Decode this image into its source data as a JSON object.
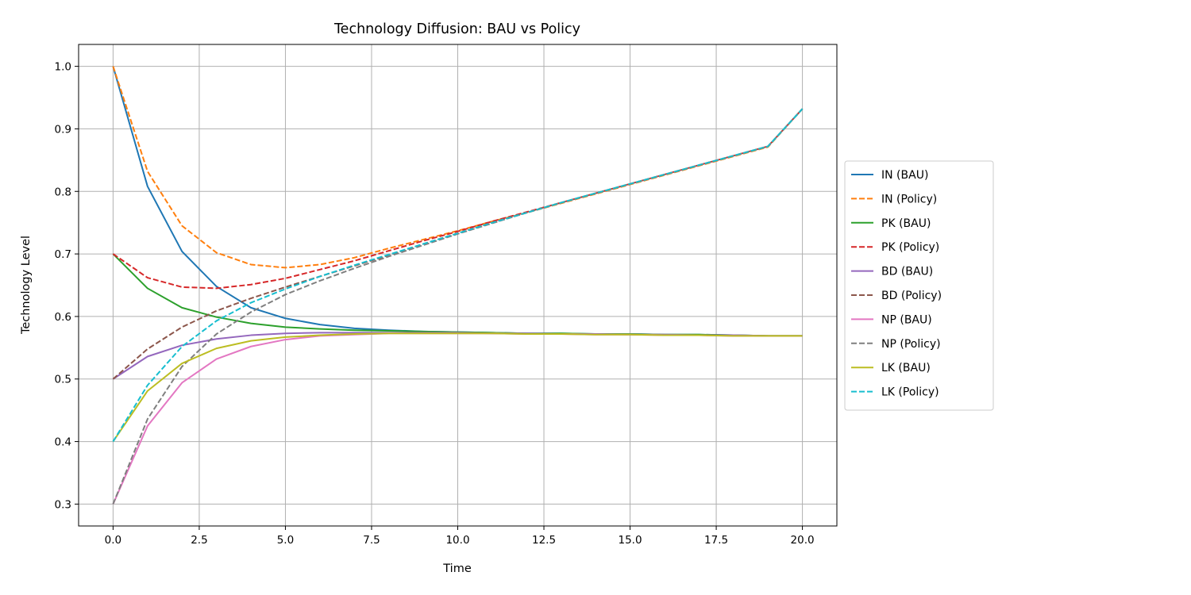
{
  "chart_data": {
    "type": "line",
    "title": "Technology Diffusion: BAU vs Policy",
    "xlabel": "Time",
    "ylabel": "Technology Level",
    "xlim": [
      -1,
      21
    ],
    "ylim": [
      0.265,
      1.035
    ],
    "xticks": [
      0.0,
      2.5,
      5.0,
      7.5,
      10.0,
      12.5,
      15.0,
      17.5,
      20.0
    ],
    "xtick_labels": [
      "0.0",
      "2.5",
      "5.0",
      "7.5",
      "10.0",
      "12.5",
      "15.0",
      "17.5",
      "20.0"
    ],
    "yticks": [
      0.3,
      0.4,
      0.5,
      0.6,
      0.7,
      0.8,
      0.9,
      1.0
    ],
    "ytick_labels": [
      "0.3",
      "0.4",
      "0.5",
      "0.6",
      "0.7",
      "0.8",
      "0.9",
      "1.0"
    ],
    "grid": true,
    "legend_position": "outside-right",
    "x": [
      0,
      1,
      2,
      3,
      4,
      5,
      6,
      7,
      8,
      9,
      10,
      11,
      12,
      13,
      14,
      15,
      16,
      17,
      18,
      19,
      20
    ],
    "series": [
      {
        "name": "IN (BAU)",
        "color": "#1f77b4",
        "dash": "solid",
        "values": [
          1.0,
          0.808,
          0.704,
          0.648,
          0.614,
          0.597,
          0.587,
          0.581,
          0.578,
          0.576,
          0.575,
          0.574,
          0.573,
          0.573,
          0.572,
          0.572,
          0.571,
          0.571,
          0.57,
          0.569,
          0.569
        ]
      },
      {
        "name": "IN (Policy)",
        "color": "#ff7f0e",
        "dash": "dashed",
        "values": [
          1.0,
          0.832,
          0.745,
          0.702,
          0.683,
          0.678,
          0.683,
          0.694,
          0.709,
          0.723,
          0.737,
          0.752,
          0.766,
          0.781,
          0.796,
          0.811,
          0.826,
          0.841,
          0.856,
          0.871,
          0.932
        ]
      },
      {
        "name": "PK (BAU)",
        "color": "#2ca02c",
        "dash": "solid",
        "values": [
          0.7,
          0.645,
          0.614,
          0.599,
          0.589,
          0.583,
          0.58,
          0.578,
          0.577,
          0.576,
          0.575,
          0.574,
          0.573,
          0.573,
          0.572,
          0.572,
          0.571,
          0.571,
          0.57,
          0.569,
          0.569
        ]
      },
      {
        "name": "PK (Policy)",
        "color": "#d62728",
        "dash": "dashed",
        "values": [
          0.7,
          0.662,
          0.647,
          0.645,
          0.651,
          0.661,
          0.675,
          0.689,
          0.705,
          0.721,
          0.736,
          0.752,
          0.767,
          0.782,
          0.797,
          0.812,
          0.827,
          0.842,
          0.857,
          0.872,
          0.932
        ]
      },
      {
        "name": "BD (BAU)",
        "color": "#9467bd",
        "dash": "solid",
        "values": [
          0.5,
          0.536,
          0.554,
          0.564,
          0.57,
          0.573,
          0.574,
          0.574,
          0.574,
          0.574,
          0.574,
          0.573,
          0.573,
          0.572,
          0.572,
          0.571,
          0.571,
          0.57,
          0.57,
          0.569,
          0.569
        ]
      },
      {
        "name": "BD (Policy)",
        "color": "#8c564b",
        "dash": "dashed",
        "values": [
          0.5,
          0.548,
          0.583,
          0.609,
          0.629,
          0.647,
          0.664,
          0.681,
          0.698,
          0.716,
          0.733,
          0.75,
          0.766,
          0.782,
          0.797,
          0.812,
          0.827,
          0.842,
          0.857,
          0.872,
          0.932
        ]
      },
      {
        "name": "NP (BAU)",
        "color": "#e377c2",
        "dash": "solid",
        "values": [
          0.3,
          0.425,
          0.494,
          0.532,
          0.552,
          0.563,
          0.569,
          0.571,
          0.573,
          0.573,
          0.573,
          0.573,
          0.572,
          0.572,
          0.571,
          0.571,
          0.57,
          0.57,
          0.569,
          0.569,
          0.569
        ]
      },
      {
        "name": "NP (Policy)",
        "color": "#7f7f7f",
        "dash": "dashed",
        "values": [
          0.3,
          0.436,
          0.52,
          0.572,
          0.607,
          0.635,
          0.657,
          0.677,
          0.696,
          0.714,
          0.732,
          0.749,
          0.766,
          0.782,
          0.797,
          0.812,
          0.827,
          0.842,
          0.857,
          0.872,
          0.932
        ]
      },
      {
        "name": "LK (BAU)",
        "color": "#bcbd22",
        "dash": "solid",
        "values": [
          0.4,
          0.481,
          0.525,
          0.549,
          0.561,
          0.567,
          0.57,
          0.572,
          0.573,
          0.573,
          0.573,
          0.573,
          0.572,
          0.572,
          0.571,
          0.571,
          0.57,
          0.57,
          0.569,
          0.569,
          0.569
        ]
      },
      {
        "name": "LK (Policy)",
        "color": "#17becf",
        "dash": "dashed",
        "values": [
          0.4,
          0.49,
          0.552,
          0.593,
          0.622,
          0.644,
          0.664,
          0.682,
          0.699,
          0.716,
          0.733,
          0.75,
          0.766,
          0.782,
          0.797,
          0.812,
          0.827,
          0.842,
          0.857,
          0.872,
          0.932
        ]
      }
    ]
  }
}
